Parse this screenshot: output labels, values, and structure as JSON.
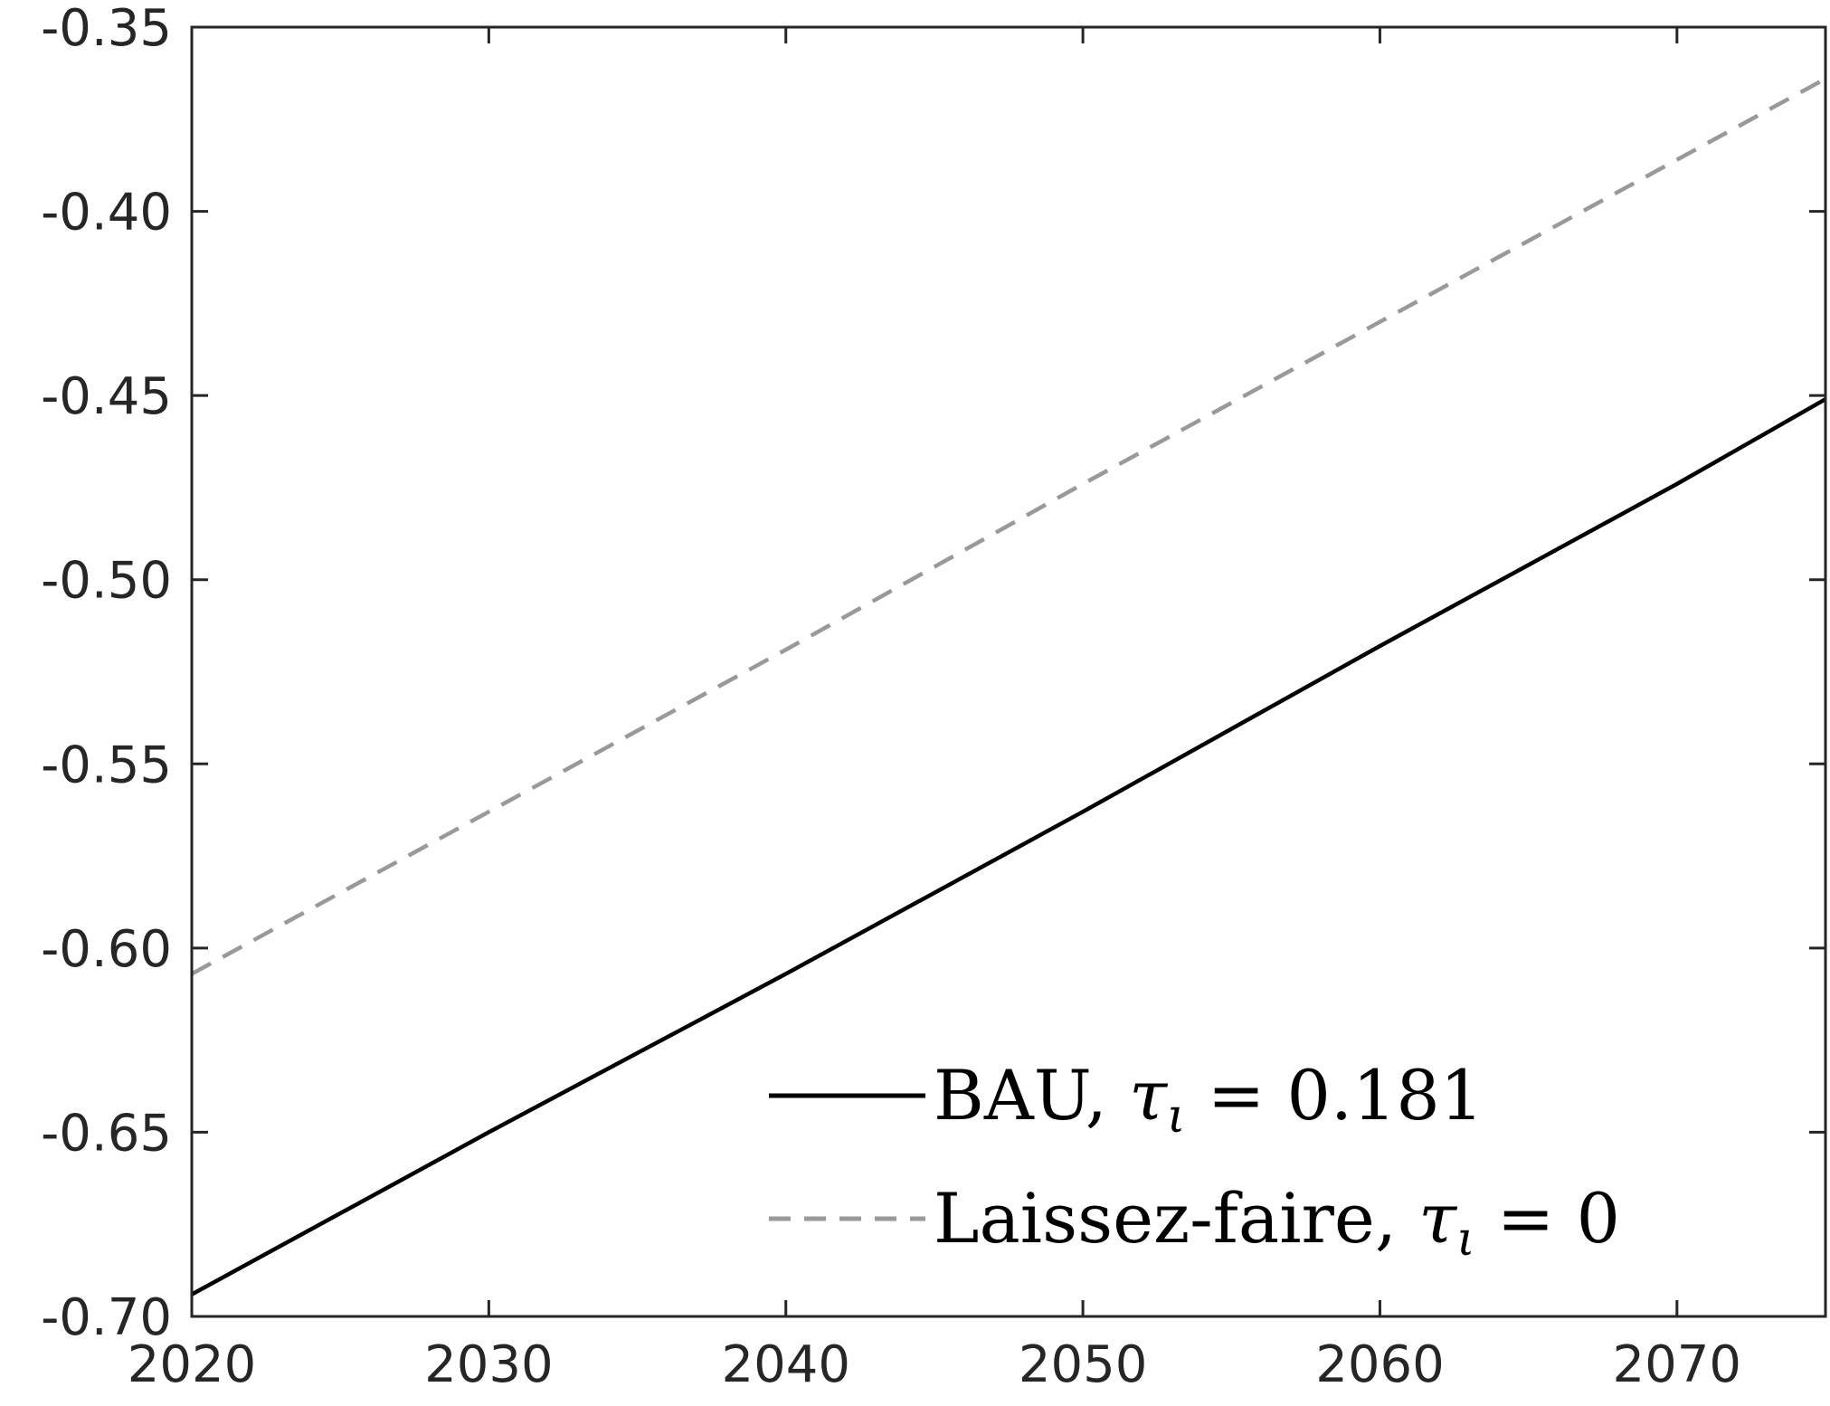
{
  "chart_data": {
    "type": "line",
    "title": "",
    "xlabel": "",
    "ylabel": "",
    "xlim": [
      2020,
      2075
    ],
    "ylim": [
      -0.7,
      -0.35
    ],
    "xticks": [
      "2020",
      "2030",
      "2040",
      "2050",
      "2060",
      "2070"
    ],
    "yticks": [
      "-0.35",
      "-0.40",
      "-0.45",
      "-0.50",
      "-0.55",
      "-0.60",
      "-0.65",
      "-0.70"
    ],
    "grid": false,
    "legend_position": "bottom-right",
    "series": [
      {
        "name": "BAU, τι = 0.181",
        "legend_prefix": "BAU, ",
        "legend_symbol": "τ",
        "legend_subscript": "ι",
        "legend_suffix": " = 0.181",
        "style": "solid",
        "color": "#000000",
        "x": [
          2020,
          2030,
          2040,
          2050,
          2060,
          2070,
          2075
        ],
        "y": [
          -0.694,
          -0.65,
          -0.607,
          -0.563,
          -0.518,
          -0.474,
          -0.451
        ]
      },
      {
        "name": "Laissez-faire, τι = 0",
        "legend_prefix": "Laissez-faire, ",
        "legend_symbol": "τ",
        "legend_subscript": "ι",
        "legend_suffix": " = 0",
        "style": "dashed",
        "color": "#999999",
        "x": [
          2020,
          2030,
          2040,
          2050,
          2060,
          2070,
          2075
        ],
        "y": [
          -0.607,
          -0.563,
          -0.519,
          -0.474,
          -0.43,
          -0.386,
          -0.364
        ]
      }
    ]
  }
}
